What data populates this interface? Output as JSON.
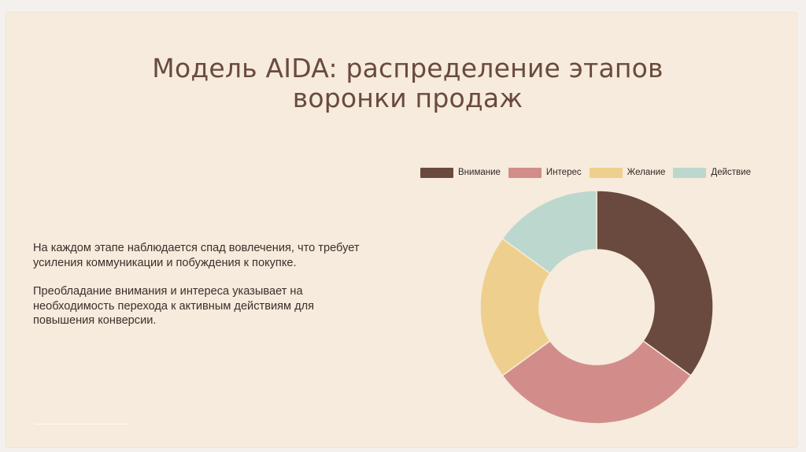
{
  "slide": {
    "title_line_1": "Модель AIDA: распределение этапов",
    "title_line_2": "воронки продаж",
    "paragraph_1": "На каждом этапе наблюдается спад вовлечения, что требует усиления коммуникации и побуждения к покупке.",
    "paragraph_2": "Преобладание внимания и интереса указывает на необходимость перехода к активным действиям для повышения конверсии."
  },
  "chart_data": {
    "type": "pie",
    "categories": [
      "Внимание",
      "Интерес",
      "Желание",
      "Действие"
    ],
    "values": [
      35,
      30,
      20,
      15
    ],
    "legend_position": "top",
    "colors": [
      "#6a4a3e",
      "#d28d8a",
      "#efcf8d",
      "#bcd7ce"
    ],
    "donut": true
  }
}
